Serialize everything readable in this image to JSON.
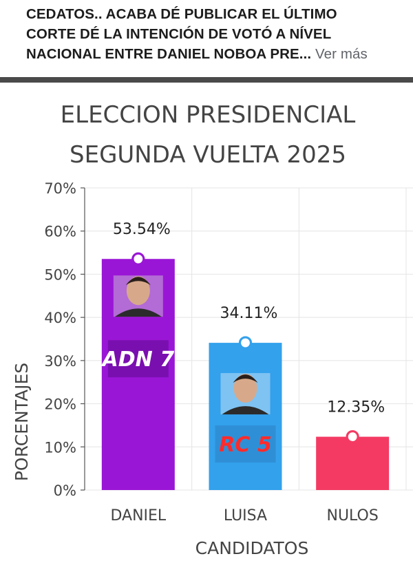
{
  "post": {
    "caption_lines": [
      "CEDATOS.. ACABA DÉ PUBLICAR EL ÚLTIMO",
      "CORTE DÉ LA INTENCIÓN DE VOTÓ A NÍVEL",
      "NACIONAL ENTRE DANIEL NOBOA PRE..."
    ],
    "see_more": "Ver más"
  },
  "chart_data": {
    "type": "bar",
    "title_lines": [
      "ELECCION PRESIDENCIAL",
      "SEGUNDA VUELTA 2025"
    ],
    "xlabel": "CANDIDATOS",
    "ylabel": "PORCENTAJES",
    "ylim": [
      0,
      70
    ],
    "yticks": [
      "0%",
      "10%",
      "20%",
      "30%",
      "40%",
      "50%",
      "60%",
      "70%"
    ],
    "grid": true,
    "categories": [
      "DANIEL",
      "LUISA",
      "NULOS"
    ],
    "values": [
      53.54,
      34.11,
      12.35
    ],
    "value_labels": [
      "53.54%",
      "34.11%",
      "12.35%"
    ],
    "colors": [
      "#9a16d6",
      "#33a1ec",
      "#f43a63"
    ],
    "bar_logos": [
      "ADN 7",
      "RC 5",
      ""
    ],
    "icons": [
      "candidate-photo-icon",
      "candidate-photo-icon",
      ""
    ]
  }
}
